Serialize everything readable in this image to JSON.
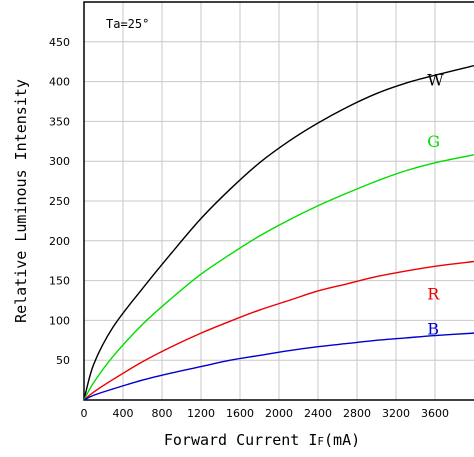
{
  "chart_data": {
    "type": "line",
    "title": "",
    "xlabel": "Forward Current I",
    "xlabel_sub": "F",
    "xlabel_unit": "(mA)",
    "ylabel": "Relative Luminous Intensity",
    "condition": "Ta=25°",
    "xlim": [
      0,
      4000
    ],
    "ylim": [
      0,
      500
    ],
    "x_ticks": [
      0,
      400,
      800,
      1200,
      1600,
      2000,
      2400,
      2800,
      3200,
      3600
    ],
    "x_tick_labels": [
      "0",
      "400",
      "800",
      "1200",
      "1600",
      "2000",
      "2400",
      "2800",
      "3200",
      "3600"
    ],
    "y_ticks": [
      50,
      100,
      150,
      200,
      250,
      300,
      350,
      400,
      450
    ],
    "y_tick_labels": [
      "50",
      "100",
      "150",
      "200",
      "250",
      "300",
      "350",
      "400",
      "450"
    ],
    "grid": true,
    "series": [
      {
        "name": "W",
        "color": "#000000",
        "x": [
          0,
          100,
          300,
          600,
          900,
          1200,
          1500,
          1800,
          2100,
          2400,
          2700,
          3000,
          3300,
          3600,
          4000
        ],
        "values": [
          0,
          45,
          92,
          140,
          185,
          228,
          265,
          298,
          325,
          348,
          368,
          385,
          398,
          408,
          420
        ]
      },
      {
        "name": "G",
        "color": "#00dd00",
        "x": [
          0,
          100,
          300,
          600,
          900,
          1200,
          1500,
          1800,
          2100,
          2400,
          2700,
          3000,
          3300,
          3600,
          4000
        ],
        "values": [
          0,
          22,
          55,
          95,
          128,
          158,
          183,
          206,
          226,
          244,
          260,
          275,
          288,
          298,
          308
        ]
      },
      {
        "name": "R",
        "color": "#ee0000",
        "x": [
          0,
          100,
          300,
          600,
          900,
          1200,
          1500,
          1800,
          2100,
          2400,
          2700,
          3000,
          3300,
          3600,
          4000
        ],
        "values": [
          0,
          10,
          26,
          48,
          67,
          84,
          99,
          113,
          125,
          137,
          146,
          155,
          162,
          168,
          174
        ]
      },
      {
        "name": "B",
        "color": "#0000cc",
        "x": [
          0,
          100,
          300,
          600,
          900,
          1200,
          1500,
          1800,
          2100,
          2400,
          2700,
          3000,
          3300,
          3600,
          4000
        ],
        "values": [
          0,
          6,
          14,
          25,
          34,
          42,
          50,
          56,
          62,
          67,
          71,
          75,
          78,
          81,
          84
        ]
      }
    ],
    "labels": [
      {
        "text": "W",
        "x": 3520,
        "y": 395,
        "color": "#000000"
      },
      {
        "text": "G",
        "x": 3520,
        "y": 318,
        "color": "#00dd00"
      },
      {
        "text": "R",
        "x": 3520,
        "y": 126,
        "color": "#ee0000"
      },
      {
        "text": "B",
        "x": 3520,
        "y": 82,
        "color": "#0000cc"
      }
    ]
  }
}
